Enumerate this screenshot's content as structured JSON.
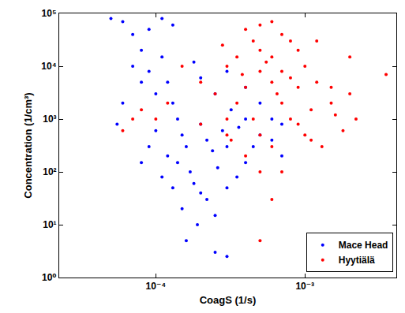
{
  "chart_data": {
    "type": "scatter",
    "x_label": "CoagS (1/s)",
    "y_label": "Concentration (1/cm³)",
    "log": true,
    "grid": false,
    "legend": "lower right",
    "marker": "circle",
    "xlim": [
      2.25e-05,
      0.0041
    ],
    "ylim": [
      1,
      100000
    ],
    "xticks": [
      {
        "value": 0.0001,
        "label": "10⁻⁴"
      },
      {
        "value": 0.001,
        "label": "10⁻³"
      }
    ],
    "yticks": [
      {
        "value": 1,
        "label": "10⁰"
      },
      {
        "value": 10,
        "label": "10¹"
      },
      {
        "value": 100,
        "label": "10²"
      },
      {
        "value": 1000,
        "label": "10³"
      },
      {
        "value": 10000,
        "label": "10⁴"
      },
      {
        "value": 100000,
        "label": "10⁵"
      }
    ],
    "series": [
      {
        "name": "Mace Head",
        "color": "#0000ff",
        "x": [
          5e-05,
          6e-05,
          7e-05,
          8e-05,
          9e-05,
          0.00011,
          0.00013,
          7e-05,
          8e-05,
          9e-05,
          0.0001,
          0.00011,
          0.00012,
          0.00013,
          0.00014,
          0.00015,
          0.00016,
          0.00012,
          0.00014,
          0.00017,
          0.00018,
          0.0002,
          0.00022,
          0.00015,
          0.00019,
          0.00016,
          0.00025,
          0.0003,
          0.00025,
          0.0003,
          0.00035,
          0.0004,
          0.00045,
          0.0005,
          0.0006,
          0.0007,
          0.0006,
          0.0005,
          0.0004,
          0.0003,
          0.00025,
          0.0002,
          0.00018,
          0.0002,
          0.00022,
          0.00024,
          0.00028,
          0.00032,
          0.00036,
          0.0001,
          9e-05,
          8e-05,
          6e-05,
          5.5e-05,
          0.00013,
          0.00011,
          0.0003,
          0.0004,
          0.00026,
          0.0007
        ],
        "y": [
          80000,
          70000,
          40000,
          20000,
          50000,
          80000,
          60000,
          10000,
          5000,
          8000,
          3000,
          15000,
          5000,
          2000,
          1000,
          500,
          300,
          200,
          150,
          100,
          60,
          40,
          30,
          20,
          10,
          5,
          3,
          2.5,
          15,
          50,
          80,
          150,
          300,
          500,
          400,
          200,
          1000,
          2000,
          4000,
          8000,
          3000,
          6000,
          12000,
          800,
          400,
          250,
          600,
          1500,
          700,
          600,
          300,
          150,
          2000,
          800,
          50,
          80,
          300,
          1000,
          120,
          800
        ]
      },
      {
        "name": "Hyytiälä",
        "color": "#ff0000",
        "x": [
          0.0004,
          0.0005,
          0.0006,
          0.0007,
          0.0008,
          0.0005,
          0.00045,
          0.00035,
          0.0003,
          0.0006,
          0.0009,
          0.001,
          0.0012,
          0.0015,
          0.002,
          0.0022,
          0.0035,
          0.0018,
          0.0013,
          0.001,
          0.0008,
          0.0007,
          0.0006,
          0.0005,
          0.0004,
          0.00035,
          0.0003,
          0.00025,
          0.0002,
          0.00015,
          0.00012,
          0.0001,
          8e-05,
          6e-05,
          7e-05,
          0.0005,
          0.0006,
          0.0004,
          0.0003,
          0.0007,
          0.0005,
          0.0006,
          0.0005,
          0.0009,
          0.0011,
          0.002,
          0.0015,
          0.0012,
          0.0008,
          0.00045,
          0.00038,
          0.00028,
          0.00065,
          0.0009,
          0.0011,
          0.0002,
          0.0016,
          0.0007,
          0.00055,
          0.00032
        ],
        "y": [
          50000,
          60000,
          70000,
          40000,
          30000,
          20000,
          30000,
          15000,
          10000,
          15000,
          20000,
          10000,
          5000,
          2000,
          3000,
          1000,
          7000,
          600,
          300,
          500,
          1000,
          2000,
          5000,
          8000,
          4000,
          2000,
          1000,
          3000,
          5000,
          10000,
          2000,
          1000,
          1500,
          600,
          1000,
          500,
          300,
          200,
          500,
          100,
          100,
          30,
          5,
          800,
          1500,
          15000,
          4000,
          30000,
          6000,
          1000,
          7000,
          25000,
          3000,
          4000,
          400,
          800,
          1200,
          8000,
          12000,
          400
        ]
      }
    ]
  }
}
